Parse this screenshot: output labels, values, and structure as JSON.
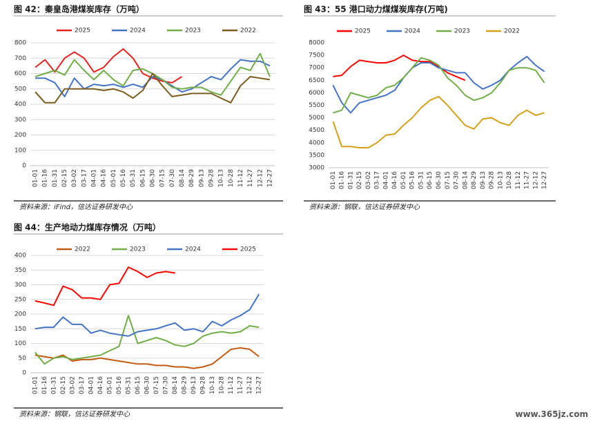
{
  "chart_data": [
    {
      "type": "line",
      "title": "图 42：秦皇岛港煤炭库存（万吨）",
      "source": "资料来源：iFind，信达证券研发中心",
      "grid": true,
      "categories": [
        "01-01",
        "01-16",
        "01-31",
        "02-15",
        "03-02",
        "03-17",
        "04-01",
        "04-16",
        "05-01",
        "05-16",
        "05-31",
        "06-15",
        "06-30",
        "07-15",
        "07-30",
        "08-14",
        "08-29",
        "09-13",
        "09-28",
        "10-13",
        "10-28",
        "11-12",
        "11-27",
        "12-12",
        "12-27"
      ],
      "ylim": [
        0,
        800
      ],
      "yticks": [
        0,
        100,
        200,
        300,
        400,
        500,
        600,
        700,
        800
      ],
      "series": [
        {
          "name": "2025",
          "color": "#e8201e",
          "values": [
            640,
            690,
            610,
            700,
            740,
            700,
            610,
            640,
            710,
            760,
            700,
            600,
            570,
            550,
            540,
            580,
            null,
            null,
            null,
            null,
            null,
            null,
            null,
            null,
            null
          ]
        },
        {
          "name": "2024",
          "color": "#4472c4",
          "values": [
            570,
            570,
            540,
            450,
            570,
            500,
            530,
            520,
            530,
            510,
            530,
            510,
            580,
            560,
            520,
            480,
            500,
            540,
            580,
            560,
            630,
            690,
            680,
            680,
            650
          ]
        },
        {
          "name": "2023",
          "color": "#70ad47",
          "values": [
            580,
            600,
            620,
            590,
            690,
            620,
            560,
            620,
            560,
            520,
            620,
            630,
            600,
            560,
            510,
            500,
            510,
            510,
            480,
            460,
            550,
            640,
            620,
            730,
            580
          ]
        },
        {
          "name": "2022",
          "color": "#7b5c1e",
          "values": [
            480,
            410,
            410,
            500,
            500,
            500,
            500,
            490,
            500,
            480,
            440,
            490,
            600,
            520,
            450,
            460,
            470,
            470,
            470,
            440,
            410,
            520,
            580,
            570,
            560
          ]
        }
      ]
    },
    {
      "type": "line",
      "title": "图 43：55 港口动力煤煤炭库存(万吨)",
      "grid": false,
      "categories": [
        "01-01",
        "01-16",
        "01-31",
        "02-15",
        "03-02",
        "03-17",
        "04-01",
        "04-16",
        "05-01",
        "05-16",
        "05-31",
        "06-15",
        "06-30",
        "07-15",
        "07-30",
        "08-14",
        "08-29",
        "09-13",
        "09-28",
        "10-13",
        "10-28",
        "11-12",
        "11-27",
        "12-12",
        "12-27"
      ],
      "ylim": [
        3000,
        8000
      ],
      "yticks": [
        3000,
        3500,
        4000,
        4500,
        5000,
        5500,
        6000,
        6500,
        7000,
        7500,
        8000
      ],
      "source": "资料来源：钢联，信达证券研发中心",
      "series": [
        {
          "name": "2025",
          "color": "#ff0000",
          "values": [
            6650,
            6700,
            7050,
            7300,
            7250,
            7200,
            7200,
            7300,
            7500,
            7300,
            7250,
            7250,
            7050,
            6800,
            6650,
            6500,
            null,
            null,
            null,
            null,
            null,
            null,
            null,
            null,
            null
          ]
        },
        {
          "name": "2024",
          "color": "#4472c4",
          "values": [
            6300,
            5600,
            5200,
            5600,
            5700,
            5800,
            5900,
            6100,
            6600,
            7000,
            7200,
            7200,
            7000,
            6900,
            6800,
            6800,
            6400,
            6150,
            6300,
            6500,
            6900,
            7200,
            7450,
            7100,
            6850
          ]
        },
        {
          "name": "2023",
          "color": "#70ad47",
          "values": [
            5200,
            5300,
            6000,
            5900,
            5800,
            5900,
            6200,
            6300,
            6600,
            7000,
            7400,
            7300,
            7100,
            6600,
            6300,
            5900,
            5700,
            5800,
            6000,
            6400,
            6900,
            7000,
            7000,
            6900,
            6400
          ]
        },
        {
          "name": "2022",
          "color": "#d4a017",
          "values": [
            4850,
            3850,
            3850,
            3800,
            3800,
            4000,
            4300,
            4350,
            4700,
            5000,
            5400,
            5700,
            5850,
            5500,
            5100,
            4700,
            4550,
            4950,
            5000,
            4800,
            4700,
            5100,
            5300,
            5100,
            5200
          ]
        }
      ]
    },
    {
      "type": "line",
      "title": "图 44：生产地动力煤库存情况（万吨）",
      "grid": true,
      "categories": [
        "01-01",
        "01-16",
        "01-31",
        "02-15",
        "03-02",
        "03-17",
        "04-01",
        "04-16",
        "05-01",
        "05-16",
        "05-31",
        "06-15",
        "06-30",
        "07-15",
        "07-30",
        "08-14",
        "08-29",
        "09-13",
        "09-28",
        "10-13",
        "10-28",
        "11-12",
        "11-27",
        "12-12",
        "12-27"
      ],
      "ylim": [
        0,
        400
      ],
      "yticks": [
        0,
        50,
        100,
        150,
        200,
        250,
        300,
        350,
        400
      ],
      "source": "资料来源：钢联，信达证券研发中心",
      "series": [
        {
          "name": "2022",
          "color": "#c55a11",
          "values": [
            60,
            55,
            50,
            60,
            40,
            45,
            45,
            50,
            45,
            40,
            35,
            30,
            30,
            25,
            25,
            20,
            20,
            15,
            20,
            30,
            55,
            80,
            85,
            80,
            55
          ]
        },
        {
          "name": "2023",
          "color": "#70ad47",
          "values": [
            70,
            30,
            50,
            55,
            45,
            50,
            55,
            60,
            75,
            90,
            195,
            100,
            110,
            120,
            110,
            95,
            90,
            100,
            125,
            135,
            140,
            135,
            140,
            160,
            155
          ]
        },
        {
          "name": "2024",
          "color": "#4472c4",
          "values": [
            150,
            155,
            155,
            190,
            165,
            165,
            135,
            145,
            135,
            130,
            125,
            140,
            145,
            150,
            160,
            170,
            145,
            150,
            140,
            175,
            160,
            180,
            195,
            215,
            268
          ]
        },
        {
          "name": "2025",
          "color": "#ff0000",
          "values": [
            245,
            238,
            230,
            295,
            283,
            255,
            255,
            250,
            300,
            305,
            360,
            345,
            325,
            340,
            345,
            340,
            null,
            null,
            null,
            null,
            null,
            null,
            null,
            null,
            null
          ]
        }
      ]
    }
  ],
  "watermark": "www.365jz.com"
}
